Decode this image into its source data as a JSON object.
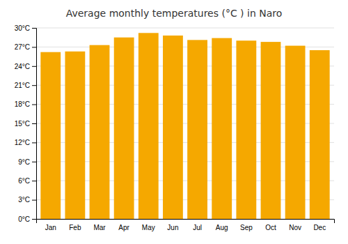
{
  "chart_data": {
    "type": "bar",
    "title": "Average monthly temperatures (°C ) in Naro",
    "categories": [
      "Jan",
      "Feb",
      "Mar",
      "Apr",
      "May",
      "Jun",
      "Jul",
      "Aug",
      "Sep",
      "Oct",
      "Nov",
      "Dec"
    ],
    "values": [
      26.2,
      26.3,
      27.3,
      28.5,
      29.2,
      28.8,
      28.1,
      28.4,
      28.0,
      27.8,
      27.2,
      26.5
    ],
    "color": "#F5A800",
    "ylim": [
      0,
      30
    ],
    "yticks": [
      {
        "value": 0,
        "label": "0°C"
      },
      {
        "value": 3,
        "label": "3°C"
      },
      {
        "value": 6,
        "label": "6°C"
      },
      {
        "value": 9,
        "label": "9°C"
      },
      {
        "value": 12,
        "label": "12°C"
      },
      {
        "value": 15,
        "label": "15°C"
      },
      {
        "value": 18,
        "label": "18°C"
      },
      {
        "value": 21,
        "label": "21°C"
      },
      {
        "value": 24,
        "label": "24°C"
      },
      {
        "value": 27,
        "label": "27°C"
      },
      {
        "value": 30,
        "label": "30°C"
      }
    ],
    "grid": true
  }
}
